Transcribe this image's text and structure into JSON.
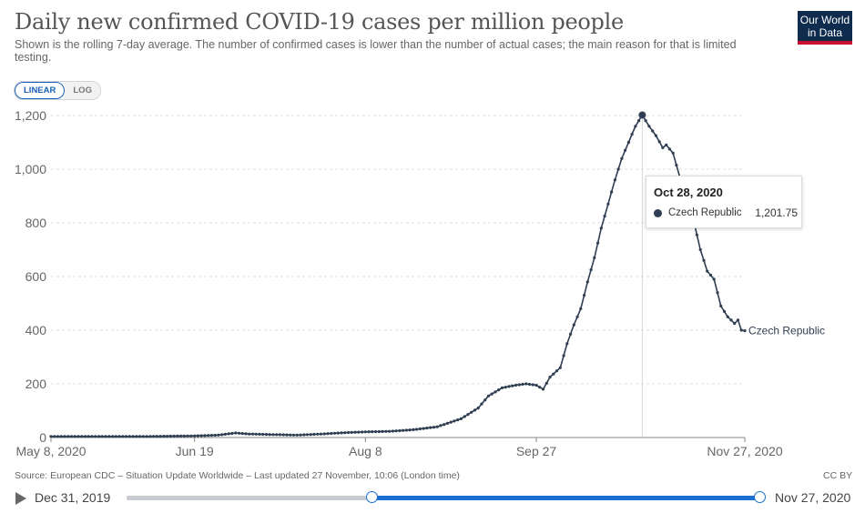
{
  "header": {
    "title": "Daily new confirmed COVID-19 cases per million people",
    "subtitle": "Shown is the rolling 7-day average. The number of confirmed cases is lower than the number of actual cases; the main reason for that is limited testing.",
    "logo_line1": "Our World",
    "logo_line2": "in Data"
  },
  "controls": {
    "linear_label": "LINEAR",
    "log_label": "LOG",
    "active_scale": "linear"
  },
  "tooltip": {
    "date": "Oct 28, 2020",
    "series_name": "Czech Republic",
    "value": "1,201.75"
  },
  "footer": {
    "source": "Source: European CDC – Situation Update Worldwide – Last updated 27 November, 10:06 (London time)",
    "license": "CC BY"
  },
  "timeline": {
    "start_label": "Dec 31, 2019",
    "end_label": "Nov 27, 2020",
    "range_start_fraction": 0.388,
    "range_end_fraction": 1.0
  },
  "colors": {
    "series": "#2f3e52",
    "accent": "#1a6fd0",
    "logo_bg": "#0f2c4e",
    "logo_stripe": "#c8102e"
  },
  "chart_data": {
    "type": "line",
    "title": "Daily new confirmed COVID-19 cases per million people",
    "xlabel": "",
    "ylabel": "",
    "x_start": "May 8, 2020",
    "x_end": "Nov 27, 2020",
    "x_ticks": [
      "May 8, 2020",
      "Jun 19",
      "Aug 8",
      "Sep 27",
      "Nov 27, 2020"
    ],
    "y_ticks": [
      "0",
      "200",
      "400",
      "600",
      "800",
      "1,000",
      "1,200"
    ],
    "ylim": [
      0,
      1200
    ],
    "grid": "horizontal dashed",
    "series": [
      {
        "name": "Czech Republic",
        "points": [
          [
            "2020-05-08",
            4
          ],
          [
            "2020-05-15",
            4
          ],
          [
            "2020-05-22",
            4
          ],
          [
            "2020-05-29",
            4
          ],
          [
            "2020-06-05",
            4
          ],
          [
            "2020-06-12",
            5
          ],
          [
            "2020-06-19",
            6
          ],
          [
            "2020-06-26",
            9
          ],
          [
            "2020-07-01",
            17
          ],
          [
            "2020-07-05",
            13
          ],
          [
            "2020-07-12",
            11
          ],
          [
            "2020-07-19",
            9
          ],
          [
            "2020-07-26",
            13
          ],
          [
            "2020-08-02",
            18
          ],
          [
            "2020-08-08",
            21
          ],
          [
            "2020-08-15",
            23
          ],
          [
            "2020-08-22",
            29
          ],
          [
            "2020-08-29",
            40
          ],
          [
            "2020-09-05",
            70
          ],
          [
            "2020-09-10",
            110
          ],
          [
            "2020-09-13",
            155
          ],
          [
            "2020-09-17",
            185
          ],
          [
            "2020-09-21",
            195
          ],
          [
            "2020-09-24",
            200
          ],
          [
            "2020-09-27",
            195
          ],
          [
            "2020-09-29",
            180
          ],
          [
            "2020-10-01",
            225
          ],
          [
            "2020-10-04",
            260
          ],
          [
            "2020-10-06",
            350
          ],
          [
            "2020-10-08",
            420
          ],
          [
            "2020-10-10",
            480
          ],
          [
            "2020-10-12",
            580
          ],
          [
            "2020-10-14",
            670
          ],
          [
            "2020-10-16",
            780
          ],
          [
            "2020-10-18",
            870
          ],
          [
            "2020-10-20",
            960
          ],
          [
            "2020-10-22",
            1040
          ],
          [
            "2020-10-24",
            1100
          ],
          [
            "2020-10-26",
            1160
          ],
          [
            "2020-10-28",
            1201.75
          ],
          [
            "2020-10-30",
            1160
          ],
          [
            "2020-11-01",
            1125
          ],
          [
            "2020-11-03",
            1080
          ],
          [
            "2020-11-04",
            1090
          ],
          [
            "2020-11-06",
            1060
          ],
          [
            "2020-11-08",
            970
          ],
          [
            "2020-11-10",
            900
          ],
          [
            "2020-11-12",
            810
          ],
          [
            "2020-11-14",
            700
          ],
          [
            "2020-11-16",
            620
          ],
          [
            "2020-11-18",
            590
          ],
          [
            "2020-11-20",
            490
          ],
          [
            "2020-11-22",
            450
          ],
          [
            "2020-11-24",
            425
          ],
          [
            "2020-11-25",
            438
          ],
          [
            "2020-11-26",
            400
          ],
          [
            "2020-11-27",
            398
          ]
        ]
      }
    ],
    "highlight": {
      "date": "2020-10-28",
      "value": 1201.75
    }
  }
}
